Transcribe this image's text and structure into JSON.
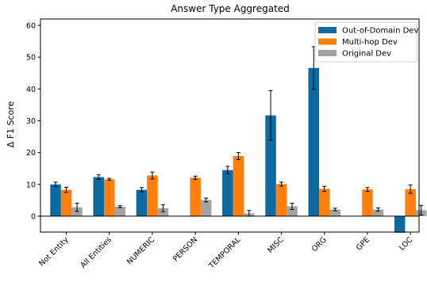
{
  "chart_data": {
    "type": "bar",
    "title": "Answer Type Aggregated",
    "xlabel": "",
    "ylabel": "Δ F1 Score",
    "ylim": [
      -5,
      62
    ],
    "yticks": [
      0,
      10,
      20,
      30,
      40,
      50,
      60
    ],
    "categories": [
      "Not Entity",
      "All Entities",
      "NUMERIC",
      "PERSON",
      "TEMPORAL",
      "MISC",
      "ORG",
      "GPE",
      "LOC"
    ],
    "series": [
      {
        "name": "Out-of-Domain Dev",
        "color": "#0b6aa2",
        "values": [
          10.0,
          12.3,
          8.3,
          0.0,
          14.5,
          31.7,
          46.6,
          0.0,
          -5.2
        ],
        "errors": [
          0.7,
          0.7,
          0.7,
          0.0,
          1.2,
          7.8,
          6.7,
          0.0,
          0.0
        ]
      },
      {
        "name": "Multi-hop Dev",
        "color": "#ff7f0e",
        "values": [
          8.3,
          11.6,
          12.8,
          12.1,
          18.9,
          10.1,
          8.6,
          8.4,
          8.5
        ],
        "errors": [
          0.8,
          0.3,
          1.1,
          0.5,
          1.1,
          0.6,
          0.8,
          0.6,
          1.3
        ]
      },
      {
        "name": "Original Dev",
        "color": "#a3a3a3",
        "values": [
          2.8,
          3.0,
          2.5,
          5.1,
          0.9,
          3.1,
          2.1,
          2.1,
          1.9
        ],
        "errors": [
          1.3,
          0.3,
          1.1,
          0.6,
          0.9,
          1.0,
          0.4,
          0.5,
          1.5
        ]
      }
    ],
    "legend_position": "top-right",
    "grid": false
  }
}
